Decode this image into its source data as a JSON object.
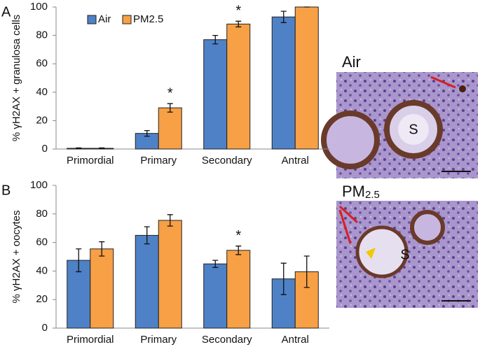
{
  "chart_data": [
    {
      "type": "bar",
      "panel_label": "A",
      "ylabel": "% γH2AX + granulosa cells",
      "categories": [
        "Primordial",
        "Primary",
        "Secondary",
        "Antral"
      ],
      "series": [
        {
          "name": "Air",
          "color": "#4f81c7",
          "values": [
            0.5,
            11,
            77,
            93
          ],
          "errors": [
            0.3,
            2,
            3,
            4
          ]
        },
        {
          "name": "PM2.5",
          "color": "#f7a046",
          "values": [
            0.5,
            29,
            88,
            100
          ],
          "errors": [
            0.3,
            3,
            2,
            0
          ]
        }
      ],
      "ylim": [
        0,
        100
      ],
      "yticks": [
        0,
        20,
        40,
        60,
        80,
        100
      ],
      "legend": "top-left",
      "annotations": [
        {
          "text": "*",
          "category": 1,
          "series": 1
        },
        {
          "text": "*",
          "category": 2,
          "series": 1
        }
      ]
    },
    {
      "type": "bar",
      "panel_label": "B",
      "ylabel": "% γH2AX + oocytes",
      "categories": [
        "Primordial",
        "Primary",
        "Secondary",
        "Antral"
      ],
      "series": [
        {
          "color": "#4f81c7",
          "values": [
            47.5,
            65,
            45,
            34.5
          ],
          "errors": [
            8,
            6,
            2.5,
            11
          ]
        },
        {
          "color": "#f7a046",
          "values": [
            55.5,
            75.5,
            54.5,
            39.5
          ],
          "errors": [
            5,
            4,
            3,
            11
          ]
        }
      ],
      "ylim": [
        0,
        100
      ],
      "yticks": [
        0,
        20,
        40,
        60,
        80,
        100
      ],
      "annotations": [
        {
          "text": "*",
          "category": 2,
          "series": 1
        }
      ]
    }
  ],
  "micrographs": [
    {
      "label": "Air",
      "marker": "S"
    },
    {
      "label": "PM",
      "label_sub": "2.5",
      "marker": "S"
    }
  ]
}
